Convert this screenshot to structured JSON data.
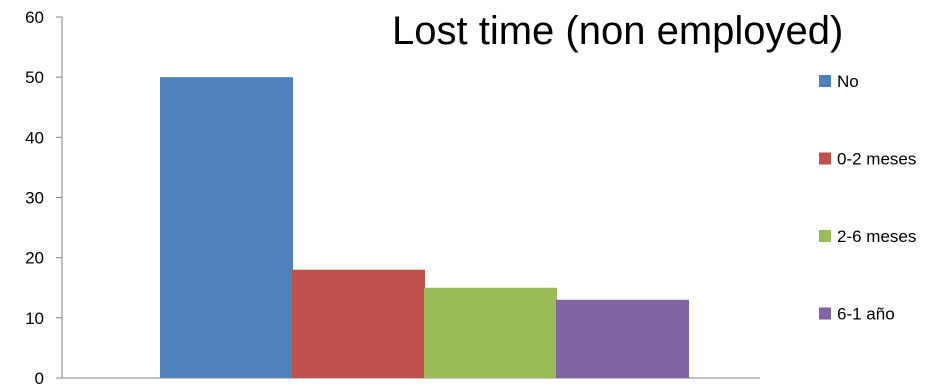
{
  "chart_data": {
    "type": "bar",
    "title": "Lost time (non employed)",
    "xlabel": "",
    "ylabel": "",
    "ylim": [
      0,
      60
    ],
    "yticks": [
      0,
      10,
      20,
      30,
      40,
      50,
      60
    ],
    "grid": false,
    "legend_position": "right",
    "series": [
      {
        "name": "No",
        "values": [
          50
        ],
        "color": "#4F81BD"
      },
      {
        "name": "0-2 meses",
        "values": [
          18
        ],
        "color": "#C0504D"
      },
      {
        "name": "2-6 meses",
        "values": [
          15
        ],
        "color": "#9BBB59"
      },
      {
        "name": "6-1 año",
        "values": [
          13
        ],
        "color": "#8064A2"
      }
    ]
  }
}
